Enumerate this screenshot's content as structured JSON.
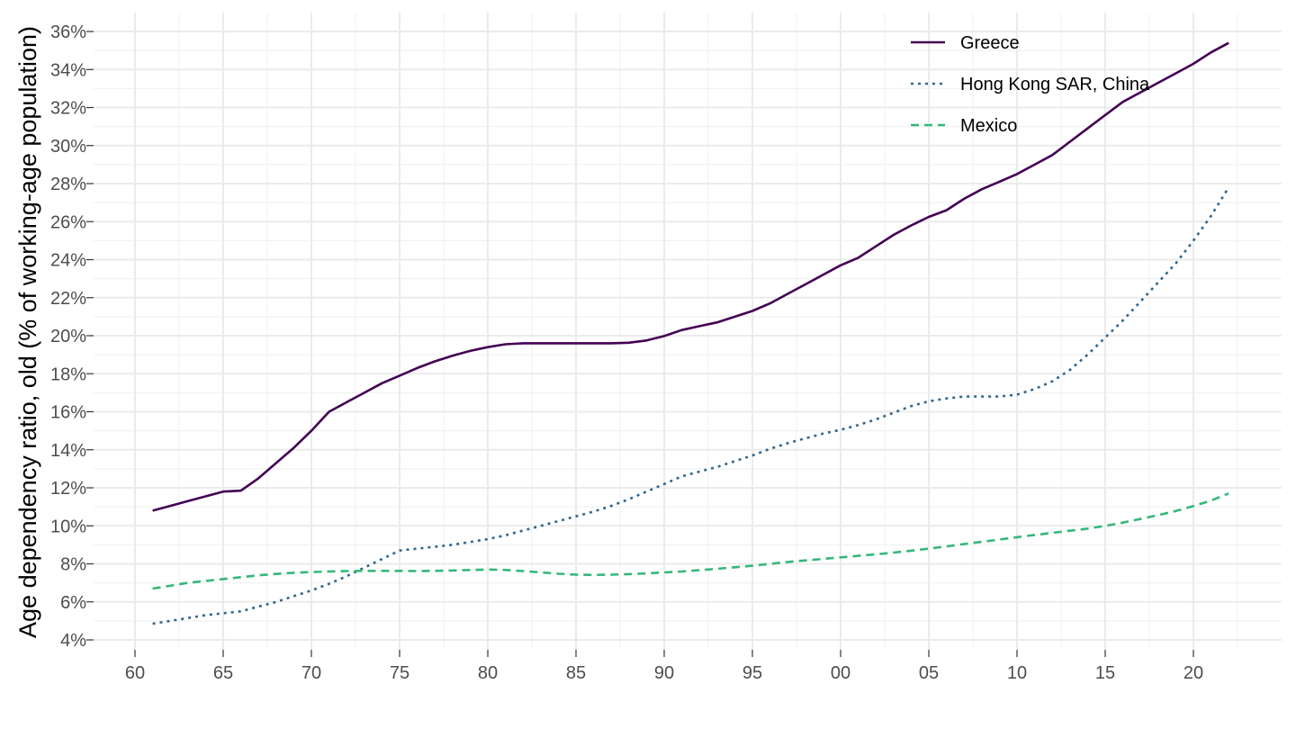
{
  "chart_data": {
    "type": "line",
    "title": "",
    "xlabel": "",
    "ylabel": "Age dependency ratio, old (% of working-age population)",
    "xlim": [
      1960,
      2023
    ],
    "ylim": [
      4,
      36
    ],
    "x_ticks": [
      {
        "value": 1960,
        "label": "60"
      },
      {
        "value": 1965,
        "label": "65"
      },
      {
        "value": 1970,
        "label": "70"
      },
      {
        "value": 1975,
        "label": "75"
      },
      {
        "value": 1980,
        "label": "80"
      },
      {
        "value": 1985,
        "label": "85"
      },
      {
        "value": 1990,
        "label": "90"
      },
      {
        "value": 1995,
        "label": "95"
      },
      {
        "value": 2000,
        "label": "00"
      },
      {
        "value": 2005,
        "label": "05"
      },
      {
        "value": 2010,
        "label": "10"
      },
      {
        "value": 2015,
        "label": "15"
      },
      {
        "value": 2020,
        "label": "20"
      }
    ],
    "y_ticks": [
      {
        "value": 4,
        "label": "4%"
      },
      {
        "value": 6,
        "label": "6%"
      },
      {
        "value": 8,
        "label": "8%"
      },
      {
        "value": 10,
        "label": "10%"
      },
      {
        "value": 12,
        "label": "12%"
      },
      {
        "value": 14,
        "label": "14%"
      },
      {
        "value": 16,
        "label": "16%"
      },
      {
        "value": 18,
        "label": "18%"
      },
      {
        "value": 20,
        "label": "20%"
      },
      {
        "value": 22,
        "label": "22%"
      },
      {
        "value": 24,
        "label": "24%"
      },
      {
        "value": 26,
        "label": "26%"
      },
      {
        "value": 28,
        "label": "28%"
      },
      {
        "value": 30,
        "label": "30%"
      },
      {
        "value": 32,
        "label": "32%"
      },
      {
        "value": 34,
        "label": "34%"
      },
      {
        "value": 36,
        "label": "36%"
      }
    ],
    "grid": true,
    "legend_position": "top-right",
    "x": [
      1961,
      1962,
      1963,
      1964,
      1965,
      1966,
      1967,
      1968,
      1969,
      1970,
      1971,
      1972,
      1973,
      1974,
      1975,
      1976,
      1977,
      1978,
      1979,
      1980,
      1981,
      1982,
      1983,
      1984,
      1985,
      1986,
      1987,
      1988,
      1989,
      1990,
      1991,
      1992,
      1993,
      1994,
      1995,
      1996,
      1997,
      1998,
      1999,
      2000,
      2001,
      2002,
      2003,
      2004,
      2005,
      2006,
      2007,
      2008,
      2009,
      2010,
      2011,
      2012,
      2013,
      2014,
      2015,
      2016,
      2017,
      2018,
      2019,
      2020,
      2021,
      2022
    ],
    "series": [
      {
        "name": "Greece",
        "color": "#440154",
        "dash": "solid",
        "values": [
          10.8,
          11.05,
          11.3,
          11.55,
          11.8,
          11.85,
          12.5,
          13.3,
          14.1,
          15.0,
          16.0,
          16.5,
          17.0,
          17.5,
          17.9,
          18.3,
          18.65,
          18.95,
          19.2,
          19.4,
          19.55,
          19.6,
          19.6,
          19.6,
          19.6,
          19.6,
          19.6,
          19.63,
          19.75,
          19.98,
          20.3,
          20.5,
          20.7,
          21.0,
          21.3,
          21.7,
          22.2,
          22.7,
          23.2,
          23.7,
          24.1,
          24.7,
          25.3,
          25.8,
          26.25,
          26.6,
          27.2,
          27.7,
          28.1,
          28.5,
          29.0,
          29.5,
          30.2,
          30.9,
          31.6,
          32.3,
          32.8,
          33.3,
          33.8,
          34.3,
          34.9,
          35.4
        ]
      },
      {
        "name": "Hong Kong SAR, China",
        "color": "#31688E",
        "dash": "dotted",
        "values": [
          4.85,
          5.0,
          5.15,
          5.3,
          5.4,
          5.5,
          5.75,
          6.0,
          6.3,
          6.6,
          6.95,
          7.35,
          7.8,
          8.25,
          8.7,
          8.8,
          8.9,
          9.0,
          9.15,
          9.3,
          9.5,
          9.75,
          10.0,
          10.25,
          10.5,
          10.75,
          11.05,
          11.4,
          11.8,
          12.2,
          12.6,
          12.85,
          13.1,
          13.4,
          13.7,
          14.05,
          14.35,
          14.6,
          14.85,
          15.05,
          15.3,
          15.6,
          15.95,
          16.3,
          16.55,
          16.7,
          16.8,
          16.8,
          16.8,
          16.9,
          17.2,
          17.6,
          18.2,
          19.0,
          19.9,
          20.8,
          21.8,
          22.8,
          23.8,
          25.0,
          26.3,
          27.8
        ]
      },
      {
        "name": "Mexico",
        "color": "#35B779",
        "dash": "dashed",
        "values": [
          6.7,
          6.85,
          7.0,
          7.1,
          7.2,
          7.3,
          7.4,
          7.47,
          7.53,
          7.57,
          7.6,
          7.62,
          7.63,
          7.63,
          7.63,
          7.62,
          7.63,
          7.65,
          7.68,
          7.7,
          7.68,
          7.62,
          7.55,
          7.48,
          7.43,
          7.42,
          7.43,
          7.46,
          7.5,
          7.55,
          7.6,
          7.67,
          7.74,
          7.82,
          7.9,
          8.0,
          8.1,
          8.18,
          8.26,
          8.34,
          8.42,
          8.5,
          8.59,
          8.69,
          8.8,
          8.92,
          9.04,
          9.16,
          9.28,
          9.4,
          9.52,
          9.63,
          9.74,
          9.85,
          10.0,
          10.17,
          10.36,
          10.56,
          10.78,
          11.04,
          11.33,
          11.7
        ]
      }
    ]
  }
}
